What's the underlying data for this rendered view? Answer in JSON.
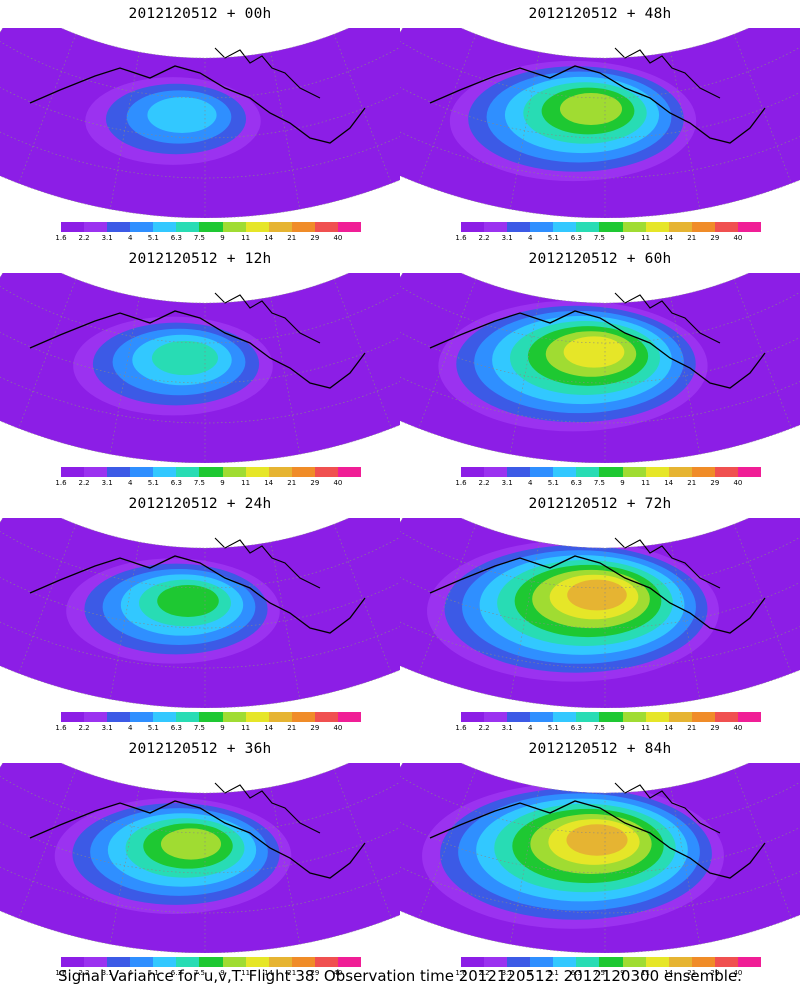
{
  "panels": [
    {
      "title": "2012120512 + 00h",
      "intensity": 0.25
    },
    {
      "title": "2012120512 + 48h",
      "intensity": 0.55
    },
    {
      "title": "2012120512 + 12h",
      "intensity": 0.35
    },
    {
      "title": "2012120512 + 60h",
      "intensity": 0.65
    },
    {
      "title": "2012120512 + 24h",
      "intensity": 0.4
    },
    {
      "title": "2012120512 + 72h",
      "intensity": 0.75
    },
    {
      "title": "2012120512 + 36h",
      "intensity": 0.5
    },
    {
      "title": "2012120512 + 84h",
      "intensity": 0.8
    }
  ],
  "colorbar": {
    "labels": [
      "1.6",
      "2.2",
      "3.1",
      "4",
      "5.1",
      "6.3",
      "7.5",
      "9",
      "11",
      "14",
      "21",
      "29",
      "40"
    ],
    "colors": [
      "#8c1ee6",
      "#9b32f0",
      "#3c5ae6",
      "#2f8fff",
      "#32c8ff",
      "#28dcb4",
      "#1ec832",
      "#a0dc32",
      "#e6e628",
      "#e6b432",
      "#f08c28",
      "#f05050",
      "#f01e96"
    ]
  },
  "footer": "Signal Variance for u,v,T. Flight 38. Observation time 2012120512. 2012120300 ensemble."
}
